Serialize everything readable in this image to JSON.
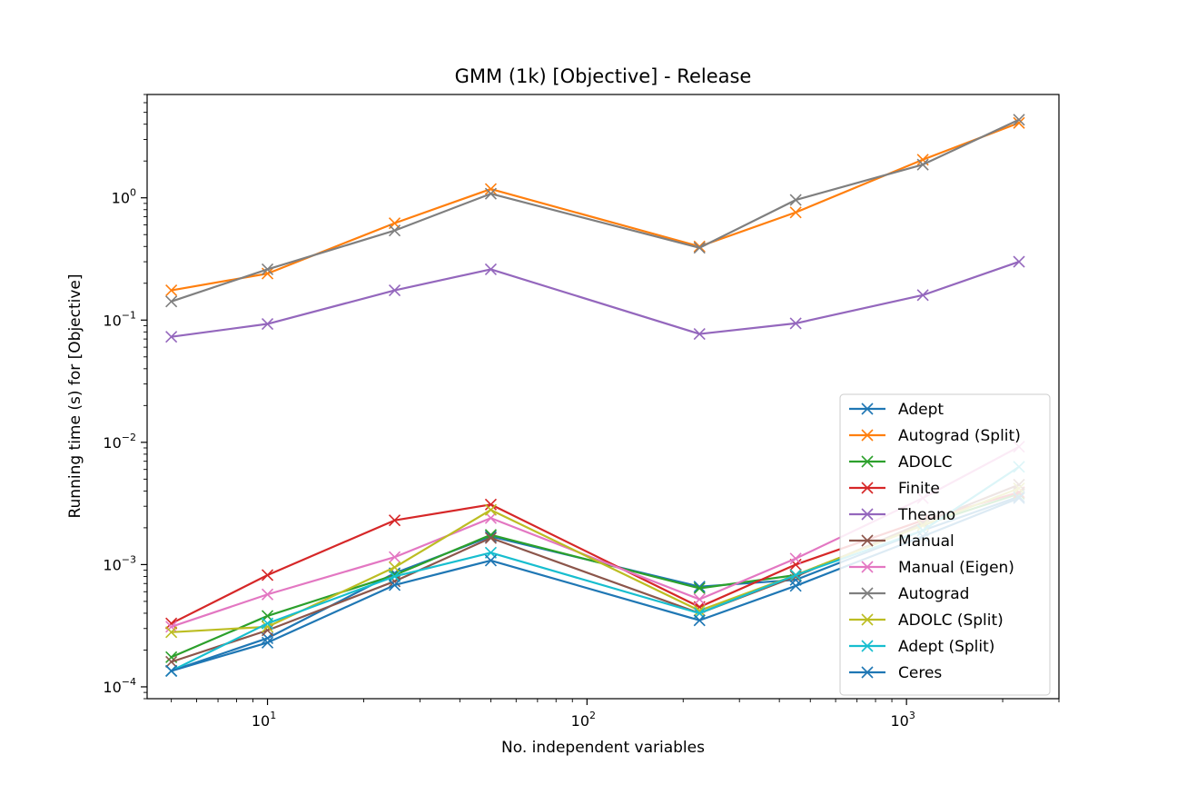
{
  "chart_data": {
    "type": "line",
    "title": "GMM (1k) [Objective] - Release",
    "xlabel": "No. independent variables",
    "ylabel": "Running time (s) for [Objective]",
    "xscale": "log",
    "yscale": "log",
    "xlim": [
      4.2,
      3000
    ],
    "ylim": [
      8e-05,
      7
    ],
    "grid": false,
    "legend_position": "lower-right",
    "marker": "x",
    "x": [
      5,
      10,
      25,
      50,
      225,
      450,
      1125,
      2250
    ],
    "xticks": [
      {
        "value": 10,
        "base": "10",
        "exp": "1"
      },
      {
        "value": 100,
        "base": "10",
        "exp": "2"
      },
      {
        "value": 1000,
        "base": "10",
        "exp": "3"
      }
    ],
    "yticks": [
      {
        "value": 0.0001,
        "base": "10",
        "exp": "−4"
      },
      {
        "value": 0.001,
        "base": "10",
        "exp": "−3"
      },
      {
        "value": 0.01,
        "base": "10",
        "exp": "−2"
      },
      {
        "value": 0.1,
        "base": "10",
        "exp": "−1"
      },
      {
        "value": 1,
        "base": "10",
        "exp": "0"
      }
    ],
    "series": [
      {
        "name": "Adept",
        "color": "#1f77b4",
        "values": [
          0.000135,
          0.00025,
          0.00085,
          0.0017,
          0.00066,
          0.00075,
          0.0019,
          0.0036
        ]
      },
      {
        "name": "Autograd (Split)",
        "color": "#ff7f0e",
        "values": [
          0.175,
          0.24,
          0.62,
          1.18,
          0.4,
          0.76,
          2.05,
          4.1
        ]
      },
      {
        "name": "ADOLC",
        "color": "#2ca02c",
        "values": [
          0.000175,
          0.00038,
          0.00082,
          0.00175,
          0.00064,
          0.00082,
          0.0021,
          0.0038
        ]
      },
      {
        "name": "Finite",
        "color": "#d62728",
        "values": [
          0.00033,
          0.00082,
          0.0023,
          0.0031,
          0.00045,
          0.001,
          0.0023,
          0.0039
        ]
      },
      {
        "name": "Theano",
        "color": "#9467bd",
        "values": [
          0.073,
          0.093,
          0.175,
          0.26,
          0.077,
          0.094,
          0.16,
          0.3
        ]
      },
      {
        "name": "Manual",
        "color": "#8c564b",
        "values": [
          0.00016,
          0.00029,
          0.00073,
          0.00165,
          0.0004,
          0.0008,
          0.0022,
          0.0045
        ]
      },
      {
        "name": "Manual (Eigen)",
        "color": "#e377c2",
        "values": [
          0.00031,
          0.00057,
          0.00115,
          0.0024,
          0.00052,
          0.00112,
          0.0035,
          0.0092
        ]
      },
      {
        "name": "Autograd",
        "color": "#7f7f7f",
        "values": [
          0.142,
          0.26,
          0.54,
          1.08,
          0.39,
          0.96,
          1.87,
          4.35
        ]
      },
      {
        "name": "ADOLC (Split)",
        "color": "#bcbd22",
        "values": [
          0.00028,
          0.00031,
          0.00095,
          0.0028,
          0.00042,
          0.00082,
          0.0021,
          0.0042
        ]
      },
      {
        "name": "Adept (Split)",
        "color": "#17becf",
        "values": [
          0.000135,
          0.00033,
          0.0008,
          0.00125,
          0.0004,
          0.00082,
          0.0019,
          0.0063
        ]
      },
      {
        "name": "Ceres",
        "color": "#1f77b4",
        "values": [
          0.000135,
          0.00023,
          0.00068,
          0.00108,
          0.00035,
          0.00067,
          0.0017,
          0.0035
        ]
      }
    ]
  }
}
